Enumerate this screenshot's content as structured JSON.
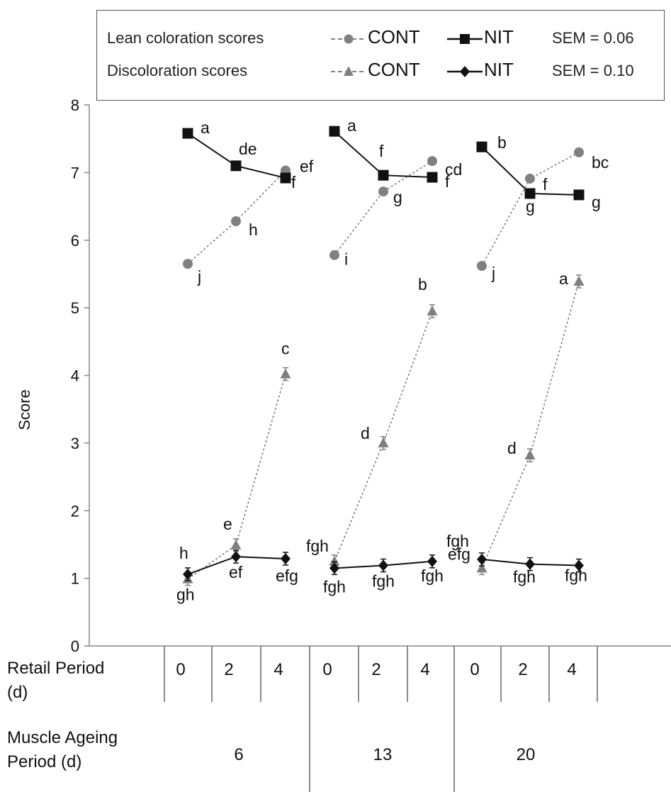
{
  "chart_data": {
    "type": "line",
    "ylabel": "Score",
    "ylim": [
      0,
      8
    ],
    "y_ticks": [
      "0",
      "1",
      "2",
      "3",
      "4",
      "5",
      "6",
      "7",
      "8"
    ],
    "x_axis": {
      "row1_label": [
        "Retail  Period",
        "(d)"
      ],
      "row2_label": [
        "Muscle Ageing",
        "Period (d)"
      ],
      "retail_periods": [
        "0",
        "2",
        "4",
        "0",
        "2",
        "4",
        "0",
        "2",
        "4"
      ],
      "ageing_periods": [
        "6",
        "13",
        "20"
      ]
    },
    "legend": {
      "rows": [
        {
          "label": "Lean coloration scores",
          "cont": "CONT",
          "nit": "NIT",
          "sem": "SEM = 0.06"
        },
        {
          "label": "Discoloration scores",
          "cont": "CONT",
          "nit": "NIT",
          "sem": "SEM = 0.10"
        }
      ]
    },
    "series": [
      {
        "key": "lean_cont",
        "group": "Lean coloration scores",
        "treatment": "CONT",
        "marker": "circle",
        "style": "dotted",
        "color": "#808080",
        "segments": [
          [
            5.65,
            6.28,
            7.03
          ],
          [
            5.78,
            6.72,
            7.17
          ],
          [
            5.62,
            6.91,
            7.3
          ]
        ],
        "letters": [
          [
            "j",
            "h",
            "ef"
          ],
          [
            "i",
            "g",
            "cd"
          ],
          [
            "j",
            "f",
            "bc"
          ]
        ]
      },
      {
        "key": "lean_nit",
        "group": "Lean coloration scores",
        "treatment": "NIT",
        "marker": "square",
        "style": "solid",
        "color": "#111111",
        "segments": [
          [
            7.58,
            7.1,
            6.92
          ],
          [
            7.61,
            6.96,
            6.93
          ],
          [
            7.38,
            6.69,
            6.67
          ]
        ],
        "letters": [
          [
            "a",
            "de",
            "f"
          ],
          [
            "a",
            "f",
            "f"
          ],
          [
            "b",
            "g",
            "g"
          ]
        ]
      },
      {
        "key": "disc_cont",
        "group": "Discoloration scores",
        "treatment": "CONT",
        "marker": "triangle",
        "style": "dotted",
        "color": "#808080",
        "segments": [
          [
            0.99,
            1.49,
            4.02
          ],
          [
            1.25,
            3.0,
            4.95
          ],
          [
            1.15,
            2.82,
            5.39
          ]
        ],
        "letters": [
          [
            "gh",
            "e",
            "c"
          ],
          [
            "fgh",
            "d",
            "b"
          ],
          [
            "efg",
            "d",
            "a"
          ]
        ]
      },
      {
        "key": "disc_nit",
        "group": "Discoloration scores",
        "treatment": "NIT",
        "marker": "diamond",
        "style": "solid",
        "color": "#111111",
        "segments": [
          [
            1.06,
            1.32,
            1.29
          ],
          [
            1.15,
            1.19,
            1.25
          ],
          [
            1.28,
            1.21,
            1.19
          ]
        ],
        "letters": [
          [
            "h",
            "ef",
            "efg"
          ],
          [
            "fgh",
            "fgh",
            "fgh"
          ],
          [
            "fgh",
            "fgh",
            "fgh"
          ]
        ]
      }
    ]
  }
}
